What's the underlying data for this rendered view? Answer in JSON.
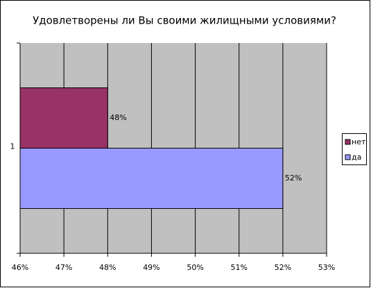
{
  "chart_data": {
    "type": "hbar",
    "title": "Удовлетворены ли Вы своими жилищными условиями?",
    "categories": [
      "1"
    ],
    "series": [
      {
        "name": "нет",
        "color": "#993366",
        "values": [
          48
        ],
        "value_labels": [
          "48%"
        ]
      },
      {
        "name": "да",
        "color": "#9999ff",
        "values": [
          52
        ],
        "value_labels": [
          "52%"
        ]
      }
    ],
    "xlim": [
      46,
      53
    ],
    "xticks": [
      {
        "value": 46,
        "label": "46%"
      },
      {
        "value": 47,
        "label": "47%"
      },
      {
        "value": 48,
        "label": "48%"
      },
      {
        "value": 49,
        "label": "49%"
      },
      {
        "value": 50,
        "label": "50%"
      },
      {
        "value": 51,
        "label": "51%"
      },
      {
        "value": 52,
        "label": "52%"
      },
      {
        "value": 53,
        "label": "53%"
      }
    ],
    "grid": true,
    "legend": "right"
  }
}
